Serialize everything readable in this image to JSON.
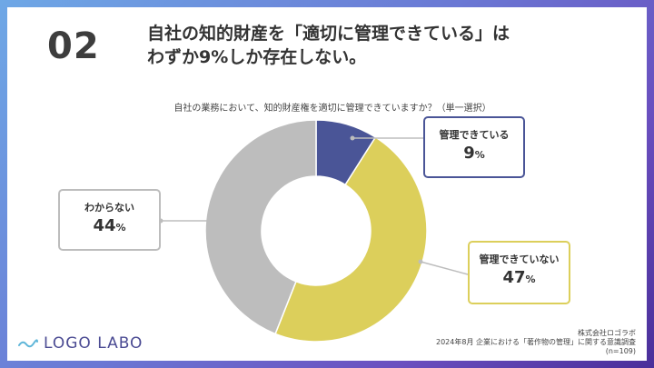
{
  "slide": {
    "number": "02",
    "title_line1": "自社の知的財産を「適切に管理できている」は",
    "title_line2": "わずか9%しか存在しない。"
  },
  "chart_data": {
    "type": "pie",
    "title": "自社の業務において、知的財産権を適切に管理できていますか？（単一選択）",
    "unit": "%",
    "slices": [
      {
        "label": "管理できている",
        "value": 9,
        "color": "#4a5597"
      },
      {
        "label": "管理できていない",
        "value": 47,
        "color": "#dccf5b"
      },
      {
        "label": "わからない",
        "value": 44,
        "color": "#bdbdbd"
      }
    ]
  },
  "footer": {
    "logo_text": "LOGO LABO",
    "source_company": "株式会社ロゴラボ",
    "source_survey": "2024年8月 企業における「著作物の管理」に関する意識調査",
    "source_n": "(n=109)"
  },
  "colors": {
    "accent_navy": "#4a5597",
    "accent_yellow": "#dccf5b",
    "neutral_gray": "#bdbdbd"
  }
}
